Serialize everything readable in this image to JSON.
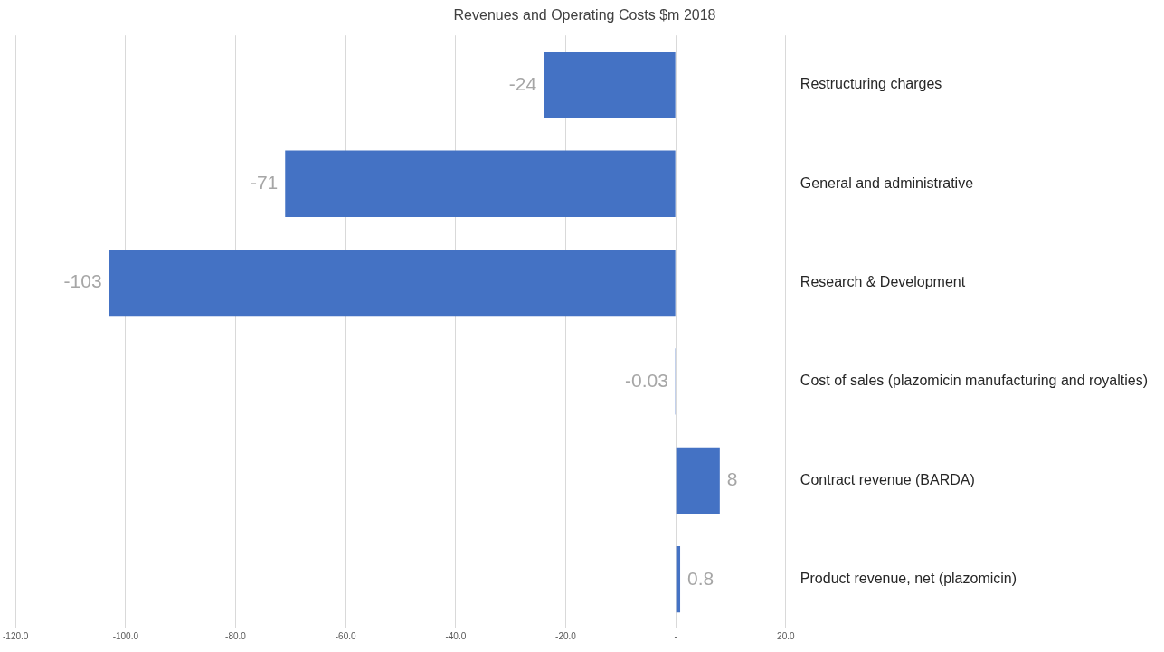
{
  "chart_data": {
    "type": "bar",
    "orientation": "horizontal",
    "title": "Revenues and Operating Costs $m 2018",
    "categories": [
      "Restructuring charges",
      "General and administrative",
      "Research & Development",
      "Cost of sales (plazomicin manufacturing and royalties)",
      "Contract revenue (BARDA)",
      "Product revenue, net (plazomicin)"
    ],
    "values": [
      -24,
      -71,
      -103,
      -0.03,
      8,
      0.8
    ],
    "color": "#4472c4",
    "data_labels": true,
    "xlim": [
      -120,
      20
    ],
    "xticks": [
      {
        "value": -120,
        "label": "-120.0"
      },
      {
        "value": -100,
        "label": "-100.0"
      },
      {
        "value": -80,
        "label": "-80.0"
      },
      {
        "value": -60,
        "label": "-60.0"
      },
      {
        "value": -40,
        "label": "-40.0"
      },
      {
        "value": -20,
        "label": "-20.0"
      },
      {
        "value": 0,
        "label": "-"
      },
      {
        "value": 20,
        "label": "20.0"
      }
    ],
    "grid": "x",
    "legend": false
  }
}
